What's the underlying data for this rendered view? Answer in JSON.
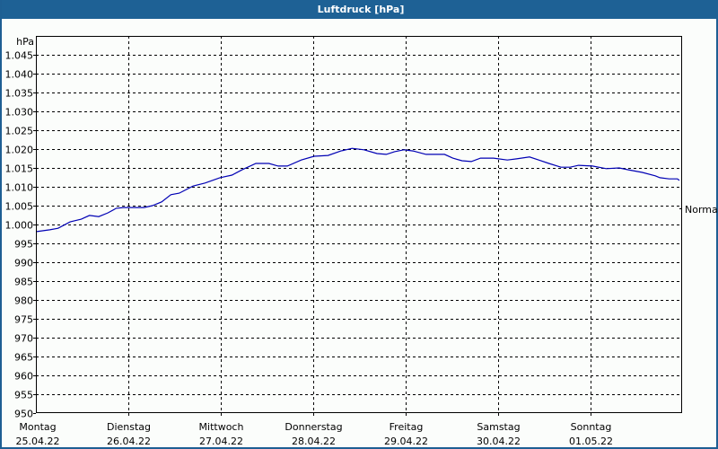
{
  "window": {
    "title": "Luftdruck [hPa]"
  },
  "chart_data": {
    "type": "line",
    "title": "Luftdruck [hPa]",
    "ylabel": "hPa",
    "xlabel": "",
    "ylim": [
      950,
      1050
    ],
    "yticks": [
      950,
      955,
      960,
      965,
      970,
      975,
      980,
      985,
      990,
      995,
      1000,
      1005,
      1010,
      1015,
      1020,
      1025,
      1030,
      1035,
      1040,
      1045
    ],
    "ytick_labels": [
      "950",
      "955",
      "960",
      "965",
      "970",
      "975",
      "980",
      "985",
      "990",
      "995",
      "1.000",
      "1.005",
      "1.010",
      "1.015",
      "1.020",
      "1.025",
      "1.030",
      "1.035",
      "1.040",
      "1.045"
    ],
    "x_categories": [
      {
        "day": "Montag",
        "date": "25.04.22"
      },
      {
        "day": "Dienstag",
        "date": "26.04.22"
      },
      {
        "day": "Mittwoch",
        "date": "27.04.22"
      },
      {
        "day": "Donnerstag",
        "date": "28.04.22"
      },
      {
        "day": "Freitag",
        "date": "29.04.22"
      },
      {
        "day": "Samstag",
        "date": "30.04.22"
      },
      {
        "day": "Sonntag",
        "date": "01.05.22"
      }
    ],
    "grid": true,
    "reference_line": {
      "label": "Normal",
      "value": 1005.5
    },
    "series": [
      {
        "name": "Luftdruck",
        "color": "#0000b4",
        "x_days": [
          0.0,
          0.15,
          0.24,
          0.37,
          0.49,
          0.58,
          0.68,
          0.78,
          0.87,
          0.95,
          1.17,
          1.26,
          1.36,
          1.46,
          1.55,
          1.7,
          1.83,
          1.99,
          2.12,
          2.23,
          2.38,
          2.52,
          2.62,
          2.72,
          2.87,
          3.01,
          3.16,
          3.3,
          3.42,
          3.55,
          3.69,
          3.79,
          3.88,
          3.98,
          4.08,
          4.22,
          4.42,
          4.51,
          4.61,
          4.71,
          4.81,
          4.95,
          5.1,
          5.2,
          5.34,
          5.44,
          5.55,
          5.68,
          5.78,
          5.87,
          6.02,
          6.17,
          6.31,
          6.41,
          6.56,
          6.7,
          6.75,
          6.85,
          6.94,
          6.96
        ],
        "values": [
          998.1,
          998.6,
          999.0,
          1000.7,
          1001.4,
          1002.4,
          1002.1,
          1003.1,
          1004.3,
          1004.5,
          1004.5,
          1005.0,
          1006.0,
          1007.9,
          1008.3,
          1010.2,
          1011.0,
          1012.4,
          1013.1,
          1014.5,
          1016.2,
          1016.2,
          1015.5,
          1015.5,
          1017.1,
          1018.1,
          1018.3,
          1019.5,
          1020.2,
          1019.8,
          1018.8,
          1018.6,
          1019.3,
          1019.8,
          1019.5,
          1018.6,
          1018.6,
          1017.6,
          1016.9,
          1016.7,
          1017.6,
          1017.6,
          1017.1,
          1017.4,
          1017.9,
          1017.1,
          1016.2,
          1015.2,
          1015.2,
          1015.7,
          1015.5,
          1014.8,
          1015.0,
          1014.5,
          1013.8,
          1012.9,
          1012.4,
          1012.1,
          1012.1,
          1011.7
        ]
      }
    ]
  }
}
